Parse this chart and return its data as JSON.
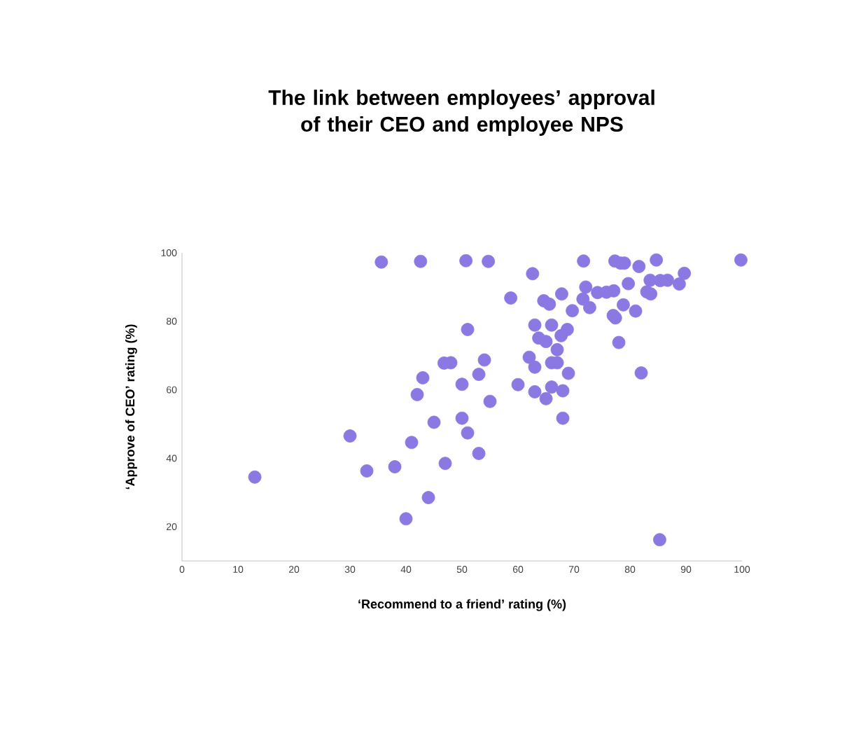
{
  "chart_data": {
    "type": "scatter",
    "title": "The link between employees’ approval of their CEO and employee NPS",
    "xlabel": "‘Recommend to a friend’ rating (%)",
    "ylabel": "‘Approve of CEO’ rating (%)",
    "x": [
      13,
      30,
      33,
      38,
      35.6,
      40,
      41,
      42,
      43,
      44,
      42.6,
      45,
      47,
      46.8,
      48,
      50,
      50,
      51,
      51,
      53,
      50.7,
      53,
      54,
      55,
      54.7,
      58.7,
      60,
      62,
      63,
      63,
      63,
      62.6,
      65,
      63.7,
      65,
      64.6,
      66,
      66,
      66,
      65.6,
      67,
      67,
      68,
      68,
      67.7,
      67.8,
      69,
      68.8,
      69.7,
      71.6,
      72.1,
      72.8,
      71.7,
      74.2,
      75.8,
      77,
      78,
      77.1,
      77.4,
      77.3,
      78.8,
      78.3,
      79,
      79.7,
      81,
      82,
      81.6,
      85.3,
      83,
      83.6,
      83.7,
      84.7,
      85.4,
      86.7,
      88.8,
      89.7,
      99.8
    ],
    "values": [
      34.5,
      46.5,
      36.3,
      37.5,
      97.3,
      22.3,
      44.6,
      58.6,
      63.5,
      28.5,
      97.5,
      50.5,
      38.5,
      67.8,
      67.9,
      51.7,
      61.6,
      47.4,
      77.6,
      41.4,
      97.7,
      64.5,
      68.7,
      56.6,
      97.5,
      86.8,
      61.5,
      69.5,
      59.4,
      66.6,
      78.9,
      93.9,
      57.4,
      75.1,
      74.1,
      86,
      60.8,
      67.9,
      78.9,
      85,
      67.9,
      71.7,
      51.7,
      59.7,
      75.8,
      88,
      64.8,
      77.6,
      83.1,
      86.5,
      90,
      84,
      97.6,
      88.4,
      88.5,
      81.7,
      73.8,
      88.9,
      81,
      97.6,
      84.8,
      97,
      97,
      91,
      83,
      64.9,
      96,
      16.2,
      88.6,
      92,
      88,
      97.9,
      91.9,
      92,
      90.9,
      94,
      97.9
    ],
    "color": "#8c78e3",
    "marker": "circle",
    "xlim": [
      0,
      100
    ],
    "ylim": [
      10,
      100
    ],
    "xticks": [
      0,
      10,
      20,
      30,
      40,
      50,
      60,
      70,
      80,
      90,
      100
    ],
    "yticks": [
      20,
      40,
      60,
      80,
      100
    ]
  }
}
